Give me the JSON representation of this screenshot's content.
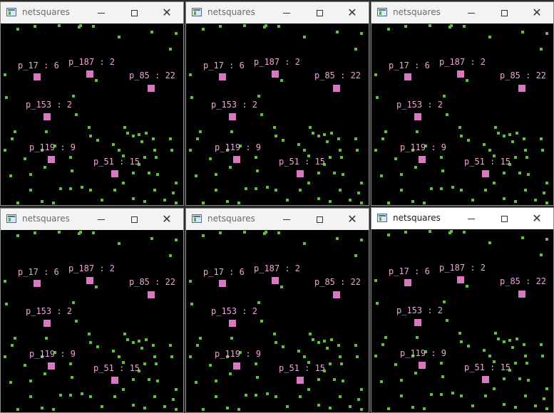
{
  "app": {
    "window_title": "netsquares",
    "colors": {
      "background": "#000000",
      "particle": "#5fc03a",
      "node": "#d878c0",
      "label": "#e9a6d6"
    }
  },
  "windows": [
    {
      "title": "netsquares",
      "active": false
    },
    {
      "title": "netsquares",
      "active": false
    },
    {
      "title": "netsquares",
      "active": false
    },
    {
      "title": "netsquares",
      "active": false
    },
    {
      "title": "netsquares",
      "active": false
    },
    {
      "title": "netsquares",
      "active": true
    }
  ],
  "nodes": [
    {
      "id": "p_17",
      "label": "p_17 : 6"
    },
    {
      "id": "p_187",
      "label": "p_187 : 2"
    },
    {
      "id": "p_85",
      "label": "p_85 : 22"
    },
    {
      "id": "p_153",
      "label": "p_153 : 2"
    },
    {
      "id": "p_119",
      "label": "p_119 : 9"
    },
    {
      "id": "p_51",
      "label": "p_51 : 15"
    }
  ],
  "controls": {
    "minimize": "minimize",
    "maximize": "maximize",
    "close": "close"
  },
  "icons": {
    "app": "app-window-icon",
    "minimize": "minimize-icon",
    "maximize": "maximize-icon",
    "close": "close-icon"
  }
}
